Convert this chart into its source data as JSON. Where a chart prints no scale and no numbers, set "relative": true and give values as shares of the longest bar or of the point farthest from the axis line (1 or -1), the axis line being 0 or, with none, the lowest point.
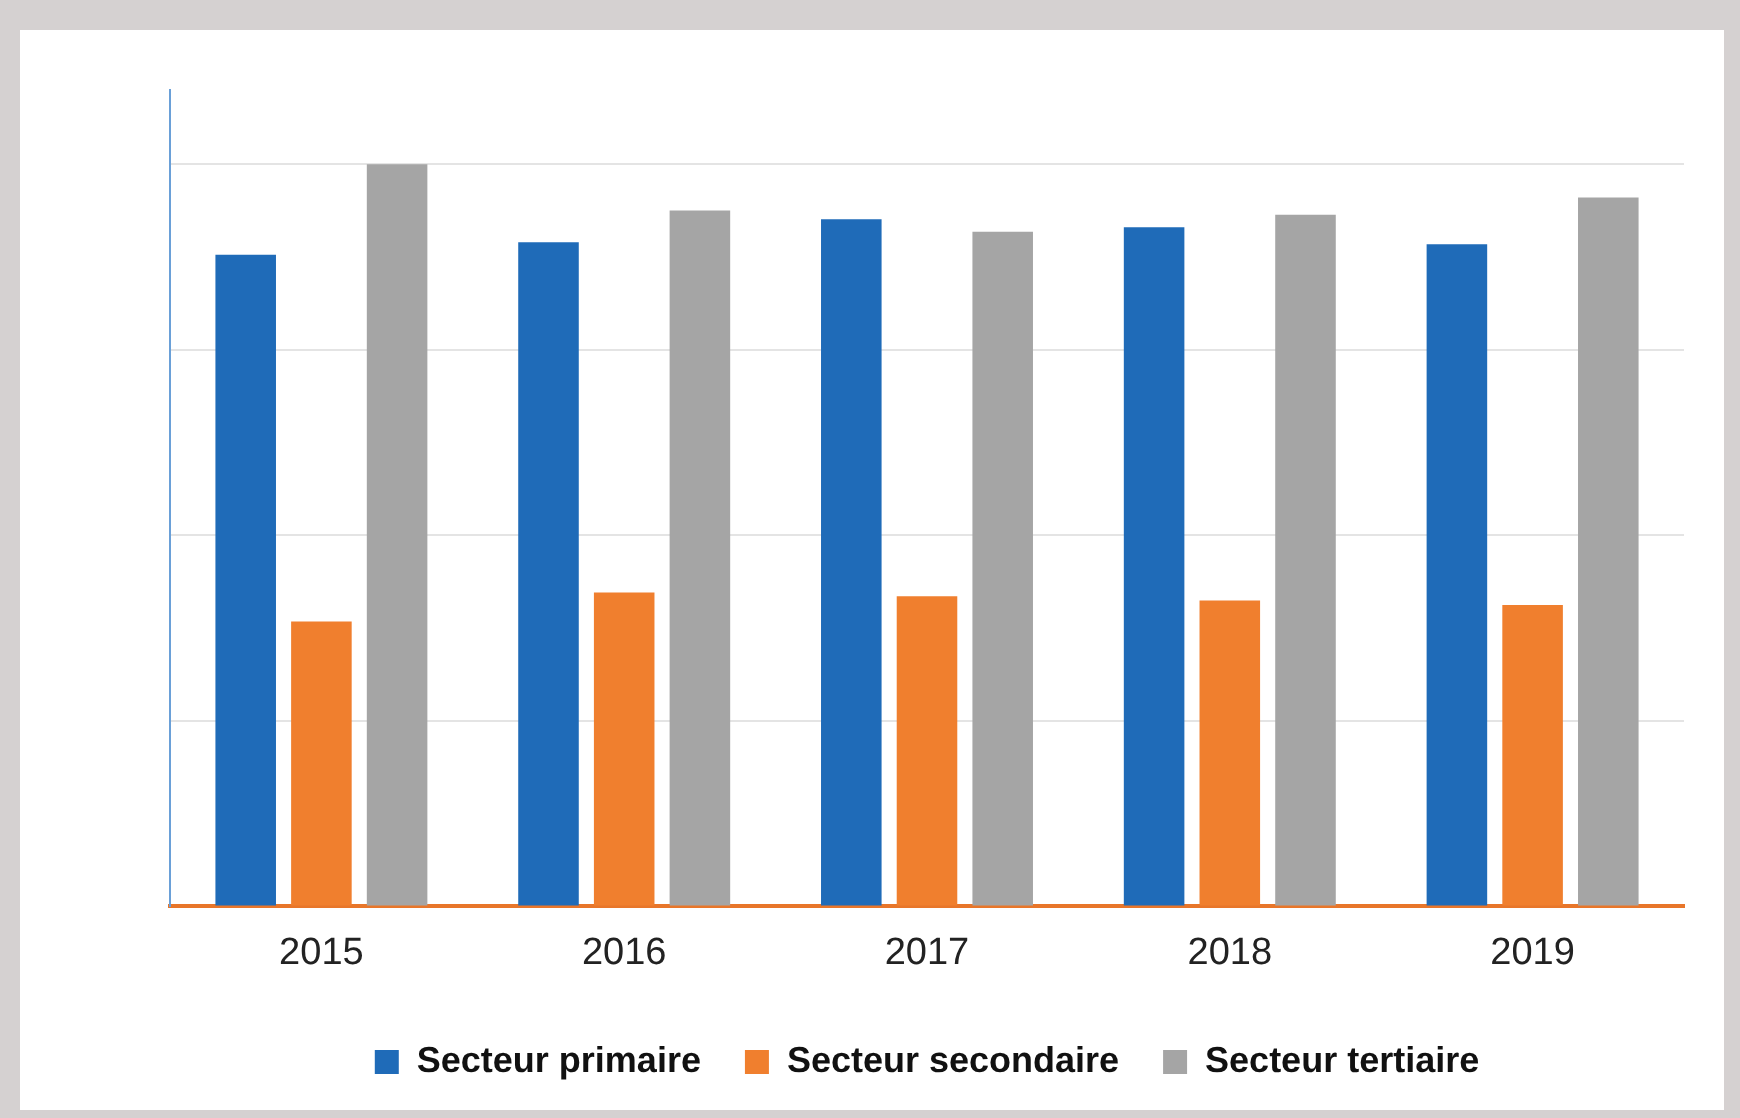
{
  "chart_data": {
    "type": "bar",
    "relative": true,
    "categories": [
      "2015",
      "2016",
      "2017",
      "2018",
      "2019"
    ],
    "series": [
      {
        "name": "Secteur primaire",
        "color": "#1f6bb8",
        "values": [
          0.878,
          0.895,
          0.926,
          0.915,
          0.892
        ]
      },
      {
        "name": "Secteur secondaire",
        "color": "#f07f2e",
        "values": [
          0.384,
          0.423,
          0.418,
          0.412,
          0.406
        ]
      },
      {
        "name": "Secteur tertiaire",
        "color": "#a5a5a5",
        "values": [
          1,
          0.9375,
          0.909,
          0.932,
          0.955
        ]
      }
    ],
    "grid": "y",
    "legend": "bottom"
  }
}
